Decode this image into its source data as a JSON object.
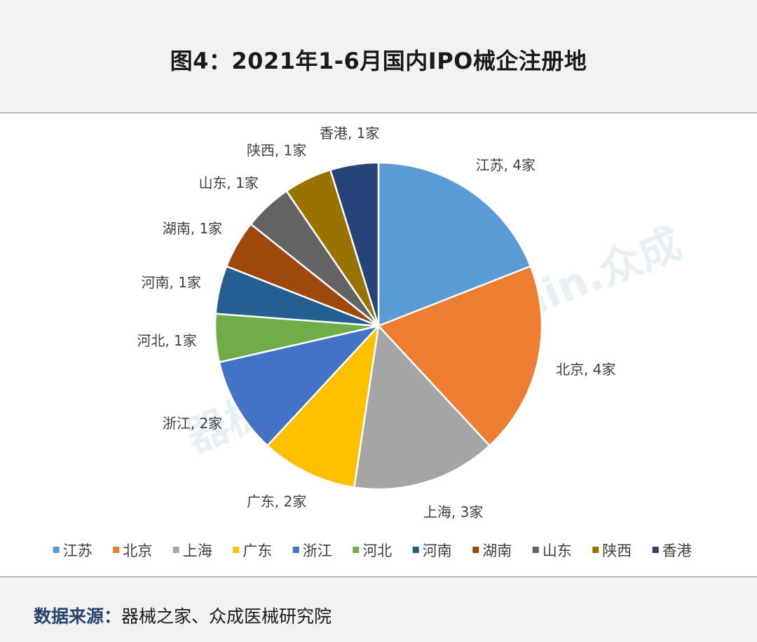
{
  "title": "图4：2021年1-6月国内IPO械企注册地",
  "source": {
    "label": "数据来源：",
    "text": "器械之家、众成医械研究院"
  },
  "watermark": "器械之家 | Joinchain.众成",
  "chart_data": {
    "type": "pie",
    "unit": "家",
    "slices": [
      {
        "name": "江苏",
        "value": 4,
        "color": "#5b9bd5"
      },
      {
        "name": "北京",
        "value": 4,
        "color": "#ed7d31"
      },
      {
        "name": "上海",
        "value": 3,
        "color": "#a5a5a5"
      },
      {
        "name": "广东",
        "value": 2,
        "color": "#ffc000"
      },
      {
        "name": "浙江",
        "value": 2,
        "color": "#4472c4"
      },
      {
        "name": "河北",
        "value": 1,
        "color": "#70ad47"
      },
      {
        "name": "河南",
        "value": 1,
        "color": "#255e91"
      },
      {
        "name": "湖南",
        "value": 1,
        "color": "#9e480e"
      },
      {
        "name": "山东",
        "value": 1,
        "color": "#636363"
      },
      {
        "name": "陕西",
        "value": 1,
        "color": "#997300"
      },
      {
        "name": "香港",
        "value": 1,
        "color": "#264478"
      }
    ],
    "legend_position": "bottom"
  }
}
